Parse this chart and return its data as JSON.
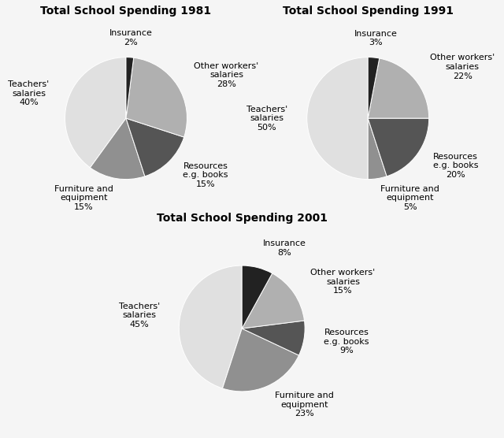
{
  "charts": [
    {
      "title": "Total School Spending 1981",
      "slices": [
        {
          "label": "Teachers'\nsalaries",
          "pct": "40%",
          "value": 40,
          "color": "#e0e0e0"
        },
        {
          "label": "Furniture and\nequipment",
          "pct": "15%",
          "value": 15,
          "color": "#909090"
        },
        {
          "label": "Resources\ne.g. books",
          "pct": "15%",
          "value": 15,
          "color": "#555555"
        },
        {
          "label": "Other workers'\nsalaries",
          "pct": "28%",
          "value": 28,
          "color": "#b0b0b0"
        },
        {
          "label": "Insurance",
          "pct": "2%",
          "value": 2,
          "color": "#222222"
        }
      ],
      "startangle": 90
    },
    {
      "title": "Total School Spending 1991",
      "slices": [
        {
          "label": "Teachers'\nsalaries",
          "pct": "50%",
          "value": 50,
          "color": "#e0e0e0"
        },
        {
          "label": "Furniture and\nequipment",
          "pct": "5%",
          "value": 5,
          "color": "#909090"
        },
        {
          "label": "Resources\ne.g. books",
          "pct": "20%",
          "value": 20,
          "color": "#555555"
        },
        {
          "label": "Other workers'\nsalaries",
          "pct": "22%",
          "value": 22,
          "color": "#b0b0b0"
        },
        {
          "label": "Insurance",
          "pct": "3%",
          "value": 3,
          "color": "#222222"
        }
      ],
      "startangle": 90
    },
    {
      "title": "Total School Spending 2001",
      "slices": [
        {
          "label": "Teachers'\nsalaries",
          "pct": "45%",
          "value": 45,
          "color": "#e0e0e0"
        },
        {
          "label": "Furniture and\nequipment",
          "pct": "23%",
          "value": 23,
          "color": "#909090"
        },
        {
          "label": "Resources\ne.g. books",
          "pct": "9%",
          "value": 9,
          "color": "#555555"
        },
        {
          "label": "Other workers'\nsalaries",
          "pct": "15%",
          "value": 15,
          "color": "#b0b0b0"
        },
        {
          "label": "Insurance",
          "pct": "8%",
          "value": 8,
          "color": "#222222"
        }
      ],
      "startangle": 90
    }
  ],
  "bg_color": "#f5f5f5",
  "title_fontsize": 10,
  "label_fontsize": 8
}
